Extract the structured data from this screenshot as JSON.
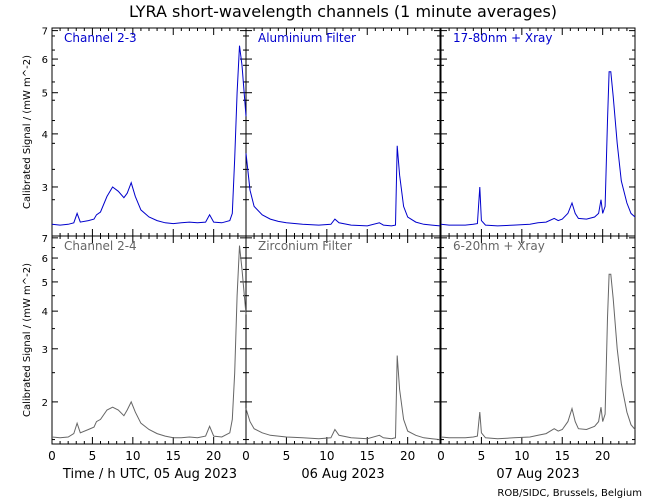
{
  "title": "LYRA short-wavelength channels (1 minute averages)",
  "credit": "ROB/SIDC, Brussels, Belgium",
  "colors": {
    "top": "#0000cc",
    "bottom": "#666666",
    "axis": "#000000"
  },
  "chart_data": {
    "type": "line",
    "title": "LYRA short-wavelength channels (1 minute averages)",
    "ylabel": "Calibrated Signal / (mW m^-2)",
    "xlabel": "Time / h UTC, 05 Aug 2023",
    "x_day_labels": [
      "Time / h UTC, 05 Aug 2023",
      "06 Aug 2023",
      "07 Aug 2023"
    ],
    "x_tick_labels": [
      "0",
      "5",
      "10",
      "15",
      "20"
    ],
    "xlim_hours": [
      0,
      24
    ],
    "rows": [
      {
        "ylabel": "Calibrated Signal / (mW m^-2)",
        "yscale": "log",
        "ylim": [
          2.3,
          7.1
        ],
        "y_ticks": [
          {
            "label": "7",
            "value": 7
          },
          {
            "label": "6",
            "value": 6
          },
          {
            "label": "5",
            "value": 5
          },
          {
            "label": "4",
            "value": 4
          },
          {
            "label": "3",
            "value": 3
          }
        ]
      },
      {
        "ylabel": "Calibrated Signal / (mW m^-2)",
        "yscale": "log",
        "ylim": [
          1.45,
          7.1
        ],
        "y_ticks": [
          {
            "label": "7",
            "value": 7
          },
          {
            "label": "6",
            "value": 6
          },
          {
            "label": "5",
            "value": 5
          },
          {
            "label": "4",
            "value": 4
          },
          {
            "label": "3",
            "value": 3
          },
          {
            "label": "2",
            "value": 2
          }
        ]
      }
    ],
    "panels": [
      {
        "label": "Channel 2-3",
        "row": 0,
        "col": 0,
        "color": "#0000cc",
        "points": [
          [
            0,
            2.45
          ],
          [
            1,
            2.44
          ],
          [
            2,
            2.45
          ],
          [
            2.7,
            2.47
          ],
          [
            3.1,
            2.6
          ],
          [
            3.5,
            2.48
          ],
          [
            4.5,
            2.5
          ],
          [
            5.2,
            2.52
          ],
          [
            5.5,
            2.58
          ],
          [
            6,
            2.62
          ],
          [
            6.8,
            2.85
          ],
          [
            7.5,
            3.0
          ],
          [
            8.2,
            2.93
          ],
          [
            8.9,
            2.83
          ],
          [
            9.3,
            2.9
          ],
          [
            9.8,
            3.07
          ],
          [
            10.3,
            2.85
          ],
          [
            11,
            2.65
          ],
          [
            12,
            2.55
          ],
          [
            13,
            2.5
          ],
          [
            14,
            2.47
          ],
          [
            15,
            2.46
          ],
          [
            16,
            2.47
          ],
          [
            17,
            2.48
          ],
          [
            18,
            2.47
          ],
          [
            19,
            2.48
          ],
          [
            19.5,
            2.58
          ],
          [
            20,
            2.48
          ],
          [
            21,
            2.47
          ],
          [
            22,
            2.5
          ],
          [
            22.3,
            2.6
          ],
          [
            22.6,
            3.5
          ],
          [
            22.9,
            5.0
          ],
          [
            23.2,
            6.45
          ],
          [
            23.5,
            5.8
          ],
          [
            24,
            4.4
          ]
        ]
      },
      {
        "label": "Aluminium Filter",
        "row": 0,
        "col": 1,
        "color": "#0000cc",
        "points": [
          [
            0,
            3.6
          ],
          [
            0.5,
            2.95
          ],
          [
            1,
            2.7
          ],
          [
            2,
            2.58
          ],
          [
            3,
            2.52
          ],
          [
            4,
            2.49
          ],
          [
            5,
            2.47
          ],
          [
            7,
            2.45
          ],
          [
            9,
            2.44
          ],
          [
            10.5,
            2.45
          ],
          [
            11,
            2.52
          ],
          [
            11.5,
            2.47
          ],
          [
            13,
            2.44
          ],
          [
            15,
            2.43
          ],
          [
            16.5,
            2.47
          ],
          [
            17,
            2.44
          ],
          [
            18,
            2.43
          ],
          [
            18.5,
            2.44
          ],
          [
            18.7,
            3.75
          ],
          [
            19,
            3.2
          ],
          [
            19.5,
            2.7
          ],
          [
            20,
            2.55
          ],
          [
            21,
            2.48
          ],
          [
            22,
            2.45
          ],
          [
            23,
            2.44
          ],
          [
            24,
            2.43
          ]
        ]
      },
      {
        "label": "17-80nm + Xray",
        "row": 0,
        "col": 2,
        "color": "#0000cc",
        "points": [
          [
            0,
            2.45
          ],
          [
            1,
            2.44
          ],
          [
            2,
            2.44
          ],
          [
            3,
            2.44
          ],
          [
            4,
            2.45
          ],
          [
            4.5,
            2.46
          ],
          [
            4.8,
            3.0
          ],
          [
            5,
            2.5
          ],
          [
            5.5,
            2.44
          ],
          [
            7,
            2.43
          ],
          [
            9,
            2.44
          ],
          [
            11,
            2.45
          ],
          [
            12,
            2.47
          ],
          [
            13,
            2.48
          ],
          [
            14,
            2.53
          ],
          [
            14.5,
            2.5
          ],
          [
            15,
            2.52
          ],
          [
            15.7,
            2.6
          ],
          [
            16.2,
            2.75
          ],
          [
            16.6,
            2.6
          ],
          [
            17,
            2.53
          ],
          [
            18,
            2.52
          ],
          [
            19,
            2.55
          ],
          [
            19.5,
            2.6
          ],
          [
            19.8,
            2.8
          ],
          [
            20,
            2.6
          ],
          [
            20.3,
            2.7
          ],
          [
            20.6,
            4.3
          ],
          [
            20.8,
            5.6
          ],
          [
            21,
            5.6
          ],
          [
            21.3,
            4.9
          ],
          [
            21.8,
            3.8
          ],
          [
            22.3,
            3.1
          ],
          [
            23,
            2.75
          ],
          [
            23.5,
            2.6
          ],
          [
            24,
            2.55
          ]
        ]
      },
      {
        "label": "Channel 2-4",
        "row": 1,
        "col": 0,
        "color": "#666666",
        "points": [
          [
            0,
            1.53
          ],
          [
            1,
            1.52
          ],
          [
            2,
            1.53
          ],
          [
            2.7,
            1.57
          ],
          [
            3.1,
            1.7
          ],
          [
            3.5,
            1.58
          ],
          [
            4.5,
            1.62
          ],
          [
            5.2,
            1.65
          ],
          [
            5.5,
            1.72
          ],
          [
            6,
            1.75
          ],
          [
            6.8,
            1.88
          ],
          [
            7.5,
            1.92
          ],
          [
            8.2,
            1.88
          ],
          [
            8.9,
            1.8
          ],
          [
            9.3,
            1.88
          ],
          [
            9.8,
            2.0
          ],
          [
            10.3,
            1.85
          ],
          [
            11,
            1.7
          ],
          [
            12,
            1.62
          ],
          [
            13,
            1.57
          ],
          [
            14,
            1.54
          ],
          [
            15,
            1.52
          ],
          [
            16,
            1.52
          ],
          [
            17,
            1.53
          ],
          [
            18,
            1.52
          ],
          [
            19,
            1.54
          ],
          [
            19.5,
            1.66
          ],
          [
            20,
            1.54
          ],
          [
            21,
            1.53
          ],
          [
            22,
            1.58
          ],
          [
            22.3,
            1.75
          ],
          [
            22.6,
            2.5
          ],
          [
            22.9,
            4.5
          ],
          [
            23.2,
            6.6
          ],
          [
            23.5,
            5.5
          ],
          [
            24,
            3.9
          ]
        ]
      },
      {
        "label": "Zirconium Filter",
        "row": 1,
        "col": 1,
        "color": "#666666",
        "points": [
          [
            0,
            1.9
          ],
          [
            0.5,
            1.72
          ],
          [
            1,
            1.63
          ],
          [
            2,
            1.58
          ],
          [
            3,
            1.55
          ],
          [
            4,
            1.54
          ],
          [
            5,
            1.53
          ],
          [
            7,
            1.52
          ],
          [
            9,
            1.51
          ],
          [
            10.5,
            1.52
          ],
          [
            11,
            1.62
          ],
          [
            11.5,
            1.55
          ],
          [
            13,
            1.52
          ],
          [
            15,
            1.51
          ],
          [
            16.5,
            1.55
          ],
          [
            17,
            1.52
          ],
          [
            18,
            1.51
          ],
          [
            18.5,
            1.52
          ],
          [
            18.7,
            2.85
          ],
          [
            19,
            2.2
          ],
          [
            19.5,
            1.75
          ],
          [
            20,
            1.6
          ],
          [
            21,
            1.55
          ],
          [
            22,
            1.52
          ],
          [
            23,
            1.51
          ],
          [
            24,
            1.5
          ]
        ]
      },
      {
        "label": "6-20nm + Xray",
        "row": 1,
        "col": 2,
        "color": "#666666",
        "points": [
          [
            0,
            1.53
          ],
          [
            1,
            1.52
          ],
          [
            2,
            1.52
          ],
          [
            3,
            1.52
          ],
          [
            4,
            1.53
          ],
          [
            4.5,
            1.54
          ],
          [
            4.8,
            1.85
          ],
          [
            5,
            1.58
          ],
          [
            5.5,
            1.52
          ],
          [
            7,
            1.51
          ],
          [
            9,
            1.52
          ],
          [
            11,
            1.53
          ],
          [
            12,
            1.55
          ],
          [
            13,
            1.57
          ],
          [
            14,
            1.63
          ],
          [
            14.5,
            1.6
          ],
          [
            15,
            1.62
          ],
          [
            15.7,
            1.72
          ],
          [
            16.2,
            1.9
          ],
          [
            16.6,
            1.72
          ],
          [
            17,
            1.63
          ],
          [
            18,
            1.62
          ],
          [
            19,
            1.66
          ],
          [
            19.5,
            1.72
          ],
          [
            19.8,
            1.92
          ],
          [
            20,
            1.72
          ],
          [
            20.3,
            1.82
          ],
          [
            20.6,
            3.8
          ],
          [
            20.8,
            5.3
          ],
          [
            21,
            5.3
          ],
          [
            21.3,
            4.4
          ],
          [
            21.8,
            3.0
          ],
          [
            22.3,
            2.3
          ],
          [
            23,
            1.85
          ],
          [
            23.5,
            1.68
          ],
          [
            24,
            1.62
          ]
        ]
      }
    ]
  }
}
